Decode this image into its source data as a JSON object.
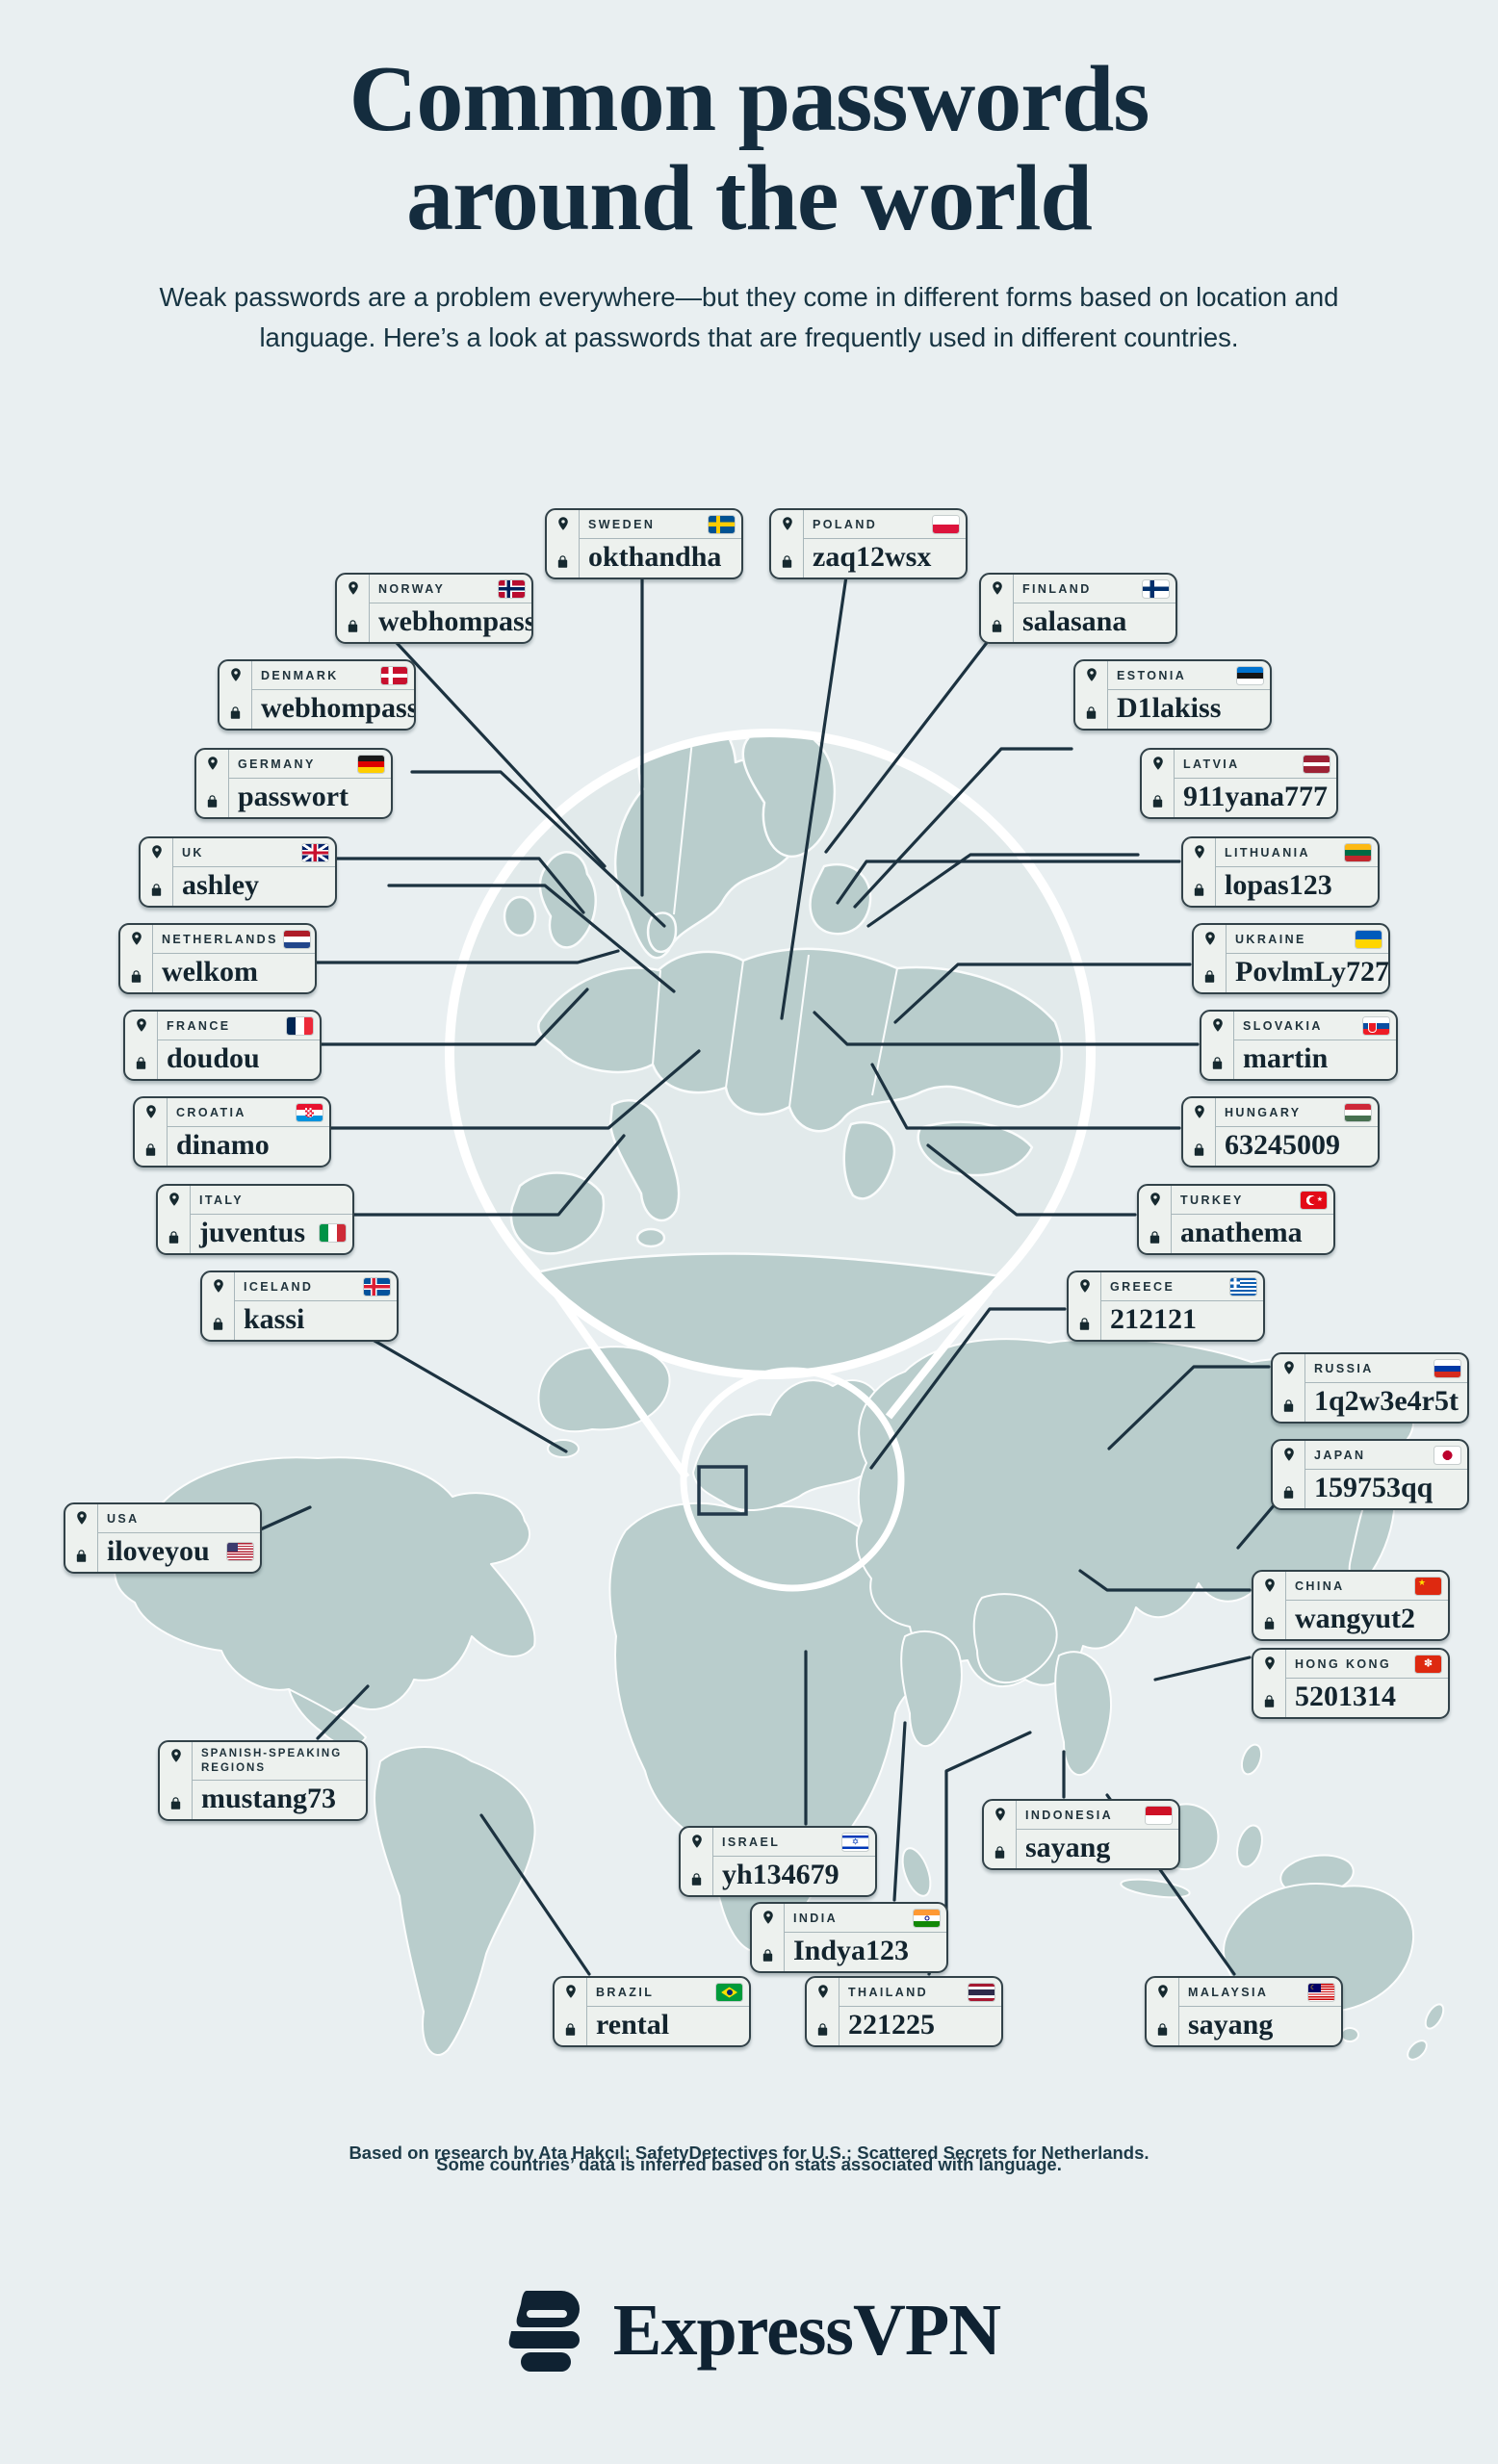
{
  "title": "Common passwords around the world",
  "subtitle": "Weak passwords are a problem everywhere—but they come in different forms based on location and language. Here’s a look at passwords that are frequently used in different countries.",
  "footer": {
    "line1": "Based on research by Ata Hakçıl; SafetyDetectives for U.S.; Scattered Secrets for Netherlands.",
    "line2": "Some countries’ data is inferred based on stats associated with language."
  },
  "brand": {
    "name": "ExpressVPN",
    "logo_icon": "expressvpn-burger-logo"
  },
  "icons": {
    "pin": "location-pin-icon",
    "lock": "lock-icon"
  },
  "colors": {
    "background": "#e9eff1",
    "land": "#b9cdcc",
    "card_background": "#edf1ee",
    "card_border": "#324249",
    "connector_line": "#1c3240",
    "dark_navy_text": "#142c3e",
    "magnifier_ring": "#ffffff"
  },
  "countries": [
    {
      "country": "SWEDEN",
      "password": "okthandha",
      "flag": "Sweden"
    },
    {
      "country": "POLAND",
      "password": "zaq12wsx",
      "flag": "Poland"
    },
    {
      "country": "NORWAY",
      "password": "webhompass",
      "flag": "Norway"
    },
    {
      "country": "FINLAND",
      "password": "salasana",
      "flag": "Finland"
    },
    {
      "country": "DENMARK",
      "password": "webhompass",
      "flag": "Denmark"
    },
    {
      "country": "ESTONIA",
      "password": "D1lakiss",
      "flag": "Estonia"
    },
    {
      "country": "GERMANY",
      "password": "passwort",
      "flag": "Germany"
    },
    {
      "country": "LATVIA",
      "password": "911yana777",
      "flag": "Latvia"
    },
    {
      "country": "UK",
      "password": "ashley",
      "flag": "United Kingdom"
    },
    {
      "country": "LITHUANIA",
      "password": "lopas123",
      "flag": "Lithuania"
    },
    {
      "country": "NETHERLANDS",
      "password": "welkom",
      "flag": "Netherlands"
    },
    {
      "country": "UKRAINE",
      "password": "PovlmLy727",
      "flag": "Ukraine"
    },
    {
      "country": "FRANCE",
      "password": "doudou",
      "flag": "France"
    },
    {
      "country": "SLOVAKIA",
      "password": "martin",
      "flag": "Slovakia"
    },
    {
      "country": "CROATIA",
      "password": "dinamo",
      "flag": "Croatia"
    },
    {
      "country": "HUNGARY",
      "password": "63245009",
      "flag": "Hungary"
    },
    {
      "country": "ITALY",
      "password": "juventus",
      "flag": "Italy"
    },
    {
      "country": "TURKEY",
      "password": "anathema",
      "flag": "Turkey"
    },
    {
      "country": "ICELAND",
      "password": "kassi",
      "flag": "Iceland"
    },
    {
      "country": "GREECE",
      "password": "212121",
      "flag": "Greece"
    },
    {
      "country": "RUSSIA",
      "password": "1q2w3e4r5t",
      "flag": "Russia"
    },
    {
      "country": "JAPAN",
      "password": "159753qq",
      "flag": "Japan"
    },
    {
      "country": "USA",
      "password": "iloveyou",
      "flag": "USA"
    },
    {
      "country": "CHINA",
      "password": "wangyut2",
      "flag": "China"
    },
    {
      "country": "HONG KONG",
      "password": "5201314",
      "flag": "Hong Kong"
    },
    {
      "country": "SPANISH-SPEAKING REGIONS",
      "password": "mustang73",
      "flag": null
    },
    {
      "country": "ISRAEL",
      "password": "yh134679",
      "flag": "Israel"
    },
    {
      "country": "INDONESIA",
      "password": "sayang",
      "flag": "Indonesia"
    },
    {
      "country": "INDIA",
      "password": "Indya123",
      "flag": "India"
    },
    {
      "country": "BRAZIL",
      "password": "rental",
      "flag": "Brazil"
    },
    {
      "country": "THAILAND",
      "password": "221225",
      "flag": "Thailand"
    },
    {
      "country": "MALAYSIA",
      "password": "sayang",
      "flag": "Malaysia"
    }
  ]
}
